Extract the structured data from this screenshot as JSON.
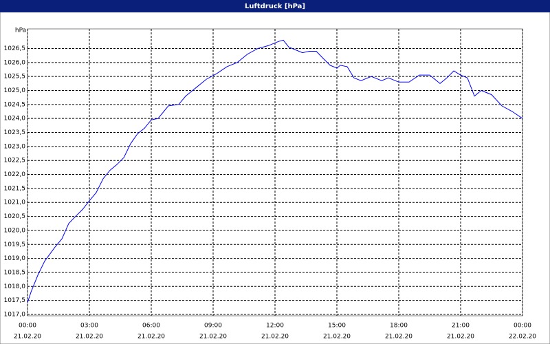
{
  "chart_data": {
    "type": "line",
    "title": "Luftdruck [hPa]",
    "y_label": "hPa",
    "x": [
      0,
      0.17,
      0.5,
      0.83,
      1.33,
      1.67,
      2,
      2.33,
      2.67,
      3,
      3.33,
      3.67,
      4,
      4.33,
      4.67,
      5,
      5.33,
      5.67,
      6,
      6.33,
      6.83,
      7.33,
      7.67,
      8.17,
      8.67,
      9.17,
      9.67,
      10.17,
      10.67,
      11.17,
      11.67,
      12.17,
      12.4,
      12.67,
      13,
      13.33,
      13.67,
      14,
      14.33,
      14.67,
      15,
      15.17,
      15.5,
      15.83,
      16.17,
      16.67,
      17.17,
      17.5,
      18,
      18.5,
      19,
      19.5,
      20,
      20.33,
      20.67,
      21,
      21.33,
      21.67,
      22,
      22.5,
      23,
      23.5,
      24
    ],
    "series": [
      {
        "name": "Luftdruck",
        "color": "#0000ff",
        "values": [
          1017.42,
          1017.8,
          1018.4,
          1018.9,
          1019.4,
          1019.7,
          1020.25,
          1020.5,
          1020.75,
          1021.06,
          1021.35,
          1021.85,
          1022.15,
          1022.35,
          1022.6,
          1023.1,
          1023.45,
          1023.65,
          1023.95,
          1024.0,
          1024.45,
          1024.5,
          1024.8,
          1025.1,
          1025.4,
          1025.6,
          1025.85,
          1026.0,
          1026.3,
          1026.5,
          1026.6,
          1026.75,
          1026.8,
          1026.55,
          1026.45,
          1026.35,
          1026.4,
          1026.4,
          1026.15,
          1025.9,
          1025.8,
          1025.9,
          1025.85,
          1025.45,
          1025.35,
          1025.5,
          1025.35,
          1025.45,
          1025.3,
          1025.3,
          1025.55,
          1025.55,
          1025.25,
          1025.45,
          1025.7,
          1025.55,
          1025.45,
          1024.8,
          1025.0,
          1024.85,
          1024.45,
          1024.25,
          1024.0
        ]
      }
    ],
    "xlim": [
      0,
      24
    ],
    "xticks": [
      {
        "value": 0,
        "label": "00:00"
      },
      {
        "value": 3,
        "label": "03:00"
      },
      {
        "value": 6,
        "label": "06:00"
      },
      {
        "value": 9,
        "label": "09:00"
      },
      {
        "value": 12,
        "label": "12:00"
      },
      {
        "value": 15,
        "label": "15:00"
      },
      {
        "value": 18,
        "label": "18:00"
      },
      {
        "value": 21,
        "label": "21:00"
      },
      {
        "value": 24,
        "label": "00:00"
      }
    ],
    "xtick_dates": [
      "21.02.20",
      "21.02.20",
      "21.02.20",
      "21.02.20",
      "21.02.20",
      "21.02.20",
      "21.02.20",
      "21.02.20",
      "22.02.20"
    ],
    "ylim": [
      1016.95,
      1027.2
    ],
    "yticks": [
      {
        "value": 1017,
        "label": "1017,0"
      },
      {
        "value": 1017.5,
        "label": "1017,5"
      },
      {
        "value": 1018,
        "label": "1018,0"
      },
      {
        "value": 1018.5,
        "label": "1018,5"
      },
      {
        "value": 1019,
        "label": "1019,0"
      },
      {
        "value": 1019.5,
        "label": "1019,5"
      },
      {
        "value": 1020,
        "label": "1020,0"
      },
      {
        "value": 1020.5,
        "label": "1020,5"
      },
      {
        "value": 1021,
        "label": "1021,0"
      },
      {
        "value": 1021.5,
        "label": "1021,5"
      },
      {
        "value": 1022,
        "label": "1022,0"
      },
      {
        "value": 1022.5,
        "label": "1022,5"
      },
      {
        "value": 1023,
        "label": "1023,0"
      },
      {
        "value": 1023.5,
        "label": "1023,5"
      },
      {
        "value": 1024,
        "label": "1024,0"
      },
      {
        "value": 1024.5,
        "label": "1024,5"
      },
      {
        "value": 1025,
        "label": "1025,0"
      },
      {
        "value": 1025.5,
        "label": "1025,5"
      },
      {
        "value": 1026,
        "label": "1026,0"
      },
      {
        "value": 1026.5,
        "label": "1026,5"
      }
    ],
    "grid": true
  }
}
